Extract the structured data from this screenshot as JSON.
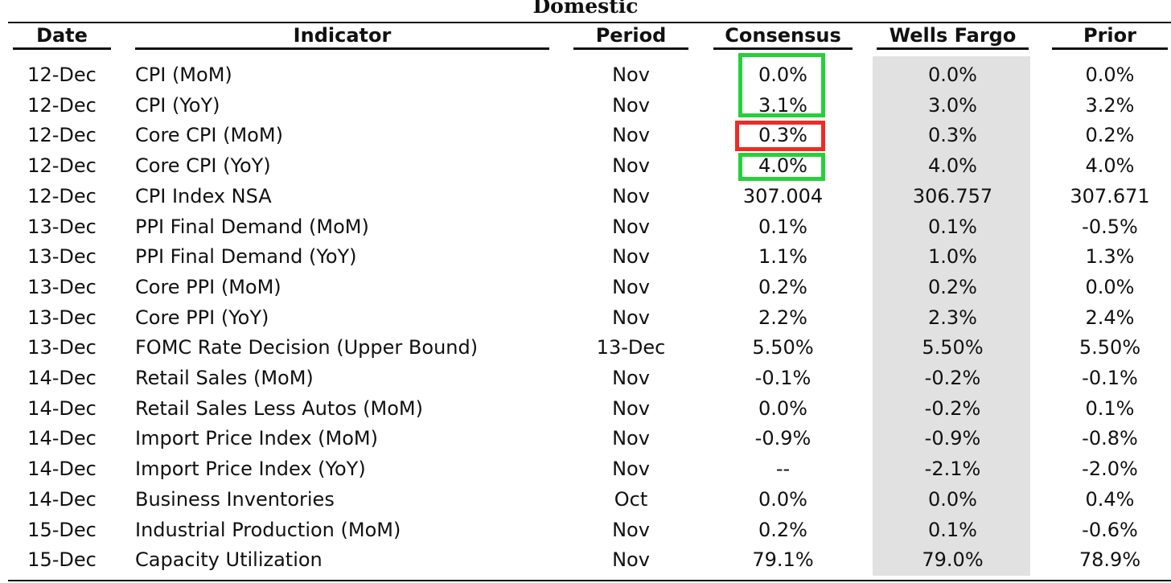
{
  "title": "Domestic",
  "headers": {
    "date": "Date",
    "indicator": "Indicator",
    "period": "Period",
    "consensus": "Consensus",
    "wells_fargo": "Wells Fargo",
    "prior": "Prior"
  },
  "rows": [
    {
      "date": "12-Dec",
      "indicator": "CPI (MoM)",
      "period": "Nov",
      "consensus": "0.0%",
      "wells_fargo": "0.0%",
      "prior": "0.0%"
    },
    {
      "date": "12-Dec",
      "indicator": "CPI (YoY)",
      "period": "Nov",
      "consensus": "3.1%",
      "wells_fargo": "3.0%",
      "prior": "3.2%"
    },
    {
      "date": "12-Dec",
      "indicator": "Core CPI (MoM)",
      "period": "Nov",
      "consensus": "0.3%",
      "wells_fargo": "0.3%",
      "prior": "0.2%"
    },
    {
      "date": "12-Dec",
      "indicator": "Core CPI (YoY)",
      "period": "Nov",
      "consensus": "4.0%",
      "wells_fargo": "4.0%",
      "prior": "4.0%"
    },
    {
      "date": "12-Dec",
      "indicator": "CPI Index NSA",
      "period": "Nov",
      "consensus": "307.004",
      "wells_fargo": "306.757",
      "prior": "307.671"
    },
    {
      "date": "13-Dec",
      "indicator": "PPI Final Demand (MoM)",
      "period": "Nov",
      "consensus": "0.1%",
      "wells_fargo": "0.1%",
      "prior": "-0.5%"
    },
    {
      "date": "13-Dec",
      "indicator": "PPI Final Demand (YoY)",
      "period": "Nov",
      "consensus": "1.1%",
      "wells_fargo": "1.0%",
      "prior": "1.3%"
    },
    {
      "date": "13-Dec",
      "indicator": "Core PPI (MoM)",
      "period": "Nov",
      "consensus": "0.2%",
      "wells_fargo": "0.2%",
      "prior": "0.0%"
    },
    {
      "date": "13-Dec",
      "indicator": "Core PPI (YoY)",
      "period": "Nov",
      "consensus": "2.2%",
      "wells_fargo": "2.3%",
      "prior": "2.4%"
    },
    {
      "date": "13-Dec",
      "indicator": "FOMC Rate Decision (Upper Bound)",
      "period": "13-Dec",
      "consensus": "5.50%",
      "wells_fargo": "5.50%",
      "prior": "5.50%"
    },
    {
      "date": "14-Dec",
      "indicator": "Retail Sales (MoM)",
      "period": "Nov",
      "consensus": "-0.1%",
      "wells_fargo": "-0.2%",
      "prior": "-0.1%"
    },
    {
      "date": "14-Dec",
      "indicator": "Retail Sales Less Autos (MoM)",
      "period": "Nov",
      "consensus": "0.0%",
      "wells_fargo": "-0.2%",
      "prior": "0.1%"
    },
    {
      "date": "14-Dec",
      "indicator": "Import Price Index (MoM)",
      "period": "Nov",
      "consensus": "-0.9%",
      "wells_fargo": "-0.9%",
      "prior": "-0.8%"
    },
    {
      "date": "14-Dec",
      "indicator": "Import Price Index (YoY)",
      "period": "Nov",
      "consensus": "--",
      "wells_fargo": "-2.1%",
      "prior": "-2.0%"
    },
    {
      "date": "14-Dec",
      "indicator": "Business Inventories",
      "period": "Oct",
      "consensus": "0.0%",
      "wells_fargo": "0.0%",
      "prior": "0.4%"
    },
    {
      "date": "15-Dec",
      "indicator": "Industrial Production (MoM)",
      "period": "Nov",
      "consensus": "0.2%",
      "wells_fargo": "0.1%",
      "prior": "-0.6%"
    },
    {
      "date": "15-Dec",
      "indicator": "Capacity Utilization",
      "period": "Nov",
      "consensus": "79.1%",
      "wells_fargo": "79.0%",
      "prior": "78.9%"
    }
  ],
  "highlights": {
    "green_color": "#27d03a",
    "red_color": "#ee2b24",
    "green_rows": [
      "CPI (MoM)",
      "CPI (YoY)",
      "Core CPI (YoY)"
    ],
    "red_rows": [
      "Core CPI (MoM)"
    ]
  }
}
